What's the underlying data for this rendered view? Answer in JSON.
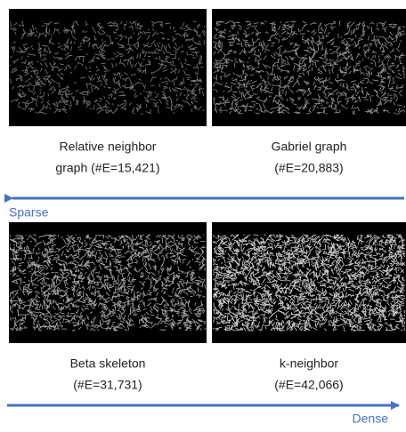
{
  "panels": [
    {
      "label": [
        "Relative neighbor",
        "graph (#E=15,421)"
      ]
    },
    {
      "label": [
        "Gabriel graph",
        "(#E=20,883)"
      ]
    },
    {
      "label": [
        "Beta skeleton",
        "(#E=31,731)"
      ]
    },
    {
      "label": [
        "k-neighbor",
        "(#E=42,066)"
      ]
    }
  ],
  "arrows": {
    "sparse": "Sparse",
    "dense": "Dense"
  }
}
